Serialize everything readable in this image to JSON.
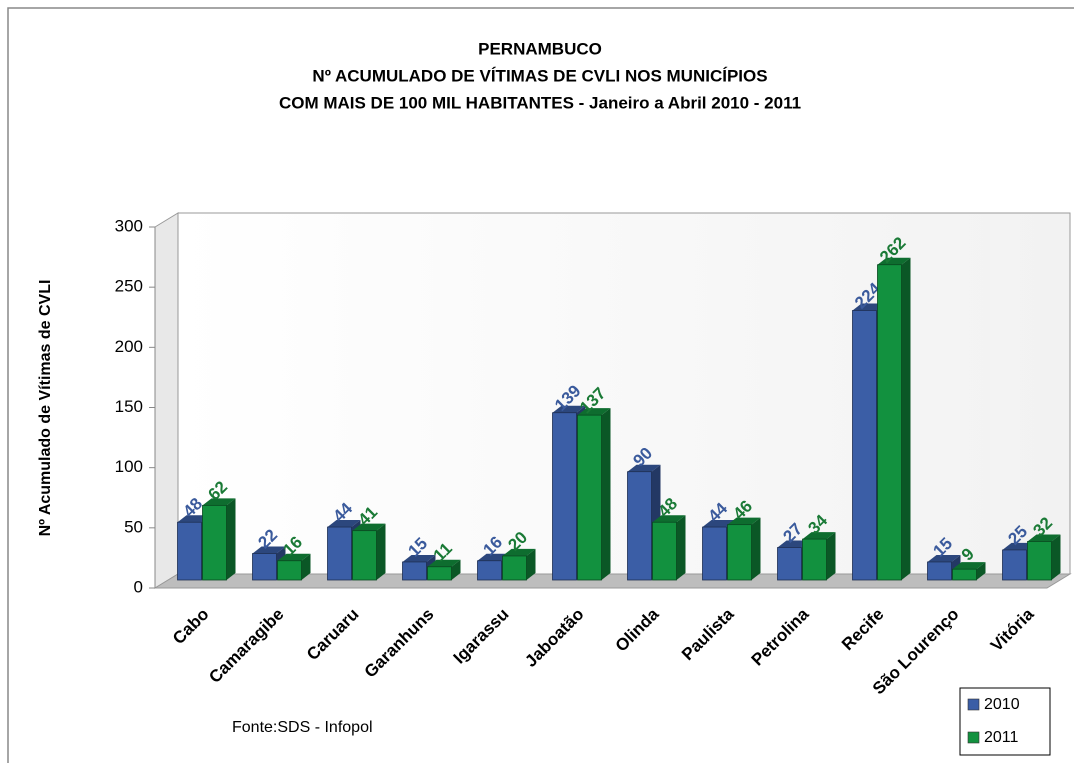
{
  "chart_data": {
    "type": "bar",
    "title": [
      "PERNAMBUCO",
      "Nº ACUMULADO DE VÍTIMAS DE CVLI NOS MUNICÍPIOS",
      "COM  MAIS DE 100 MIL HABITANTES - Janeiro a Abril 2010 - 2011"
    ],
    "y_label": "Nº Acumulado de Vítimas de CVLI",
    "source": "Fonte:SDS - Infopol",
    "categories": [
      "Cabo",
      "Camaragibe",
      "Caruaru",
      "Garanhuns",
      "Igarassu",
      "Jaboatão",
      "Olinda",
      "Paulista",
      "Petrolina",
      "Recife",
      "São Lourenço",
      "Vitória"
    ],
    "series": [
      {
        "name": "2010",
        "color": "#3b5ea6",
        "label_color": "#3a5a9c",
        "values": [
          48,
          22,
          44,
          15,
          16,
          139,
          90,
          44,
          27,
          224,
          15,
          25
        ]
      },
      {
        "name": "2011",
        "color": "#12913f",
        "label_color": "#1a7a36",
        "values": [
          62,
          16,
          41,
          11,
          20,
          137,
          48,
          46,
          34,
          262,
          9,
          32
        ]
      }
    ],
    "ylim": [
      0,
      300
    ],
    "yticks": [
      0,
      50,
      100,
      150,
      200,
      250,
      300
    ],
    "grid": false,
    "legend": "lower right"
  }
}
